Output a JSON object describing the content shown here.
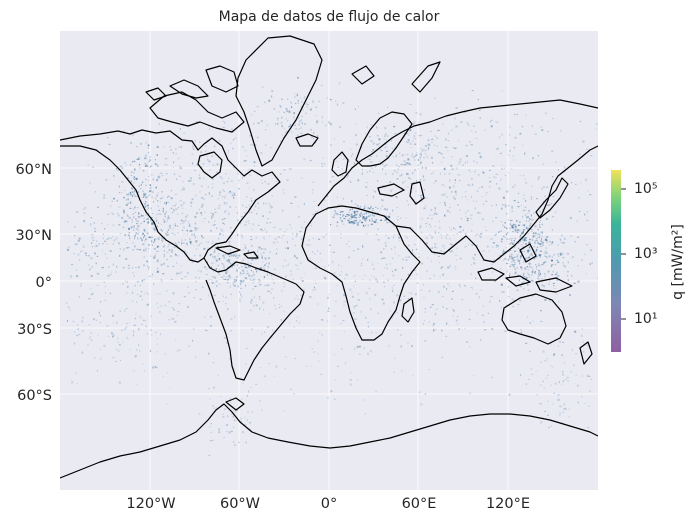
{
  "title": "Mapa de datos de flujo de calor",
  "axes": {
    "x_ticks": [
      "120°W",
      "60°W",
      "0°",
      "60°E",
      "120°E"
    ],
    "y_ticks": [
      "60°N",
      "30°N",
      "0°",
      "30°S",
      "60°S"
    ]
  },
  "colorbar": {
    "label": "q [mW/m²]",
    "ticks": [
      "10⁵",
      "10³",
      "10¹"
    ],
    "scale": "log",
    "colormap": [
      "#8e5fa3",
      "#7f86b5",
      "#4f9ab0",
      "#39b49a",
      "#7fd27a",
      "#f0e35a"
    ]
  },
  "map": {
    "projection": "Mercator",
    "background": "#eaeaf2",
    "land_fill": "#eaeaf2",
    "coastline_color": "#000000",
    "gridlines": true,
    "point_color": "#3f6d94"
  }
}
